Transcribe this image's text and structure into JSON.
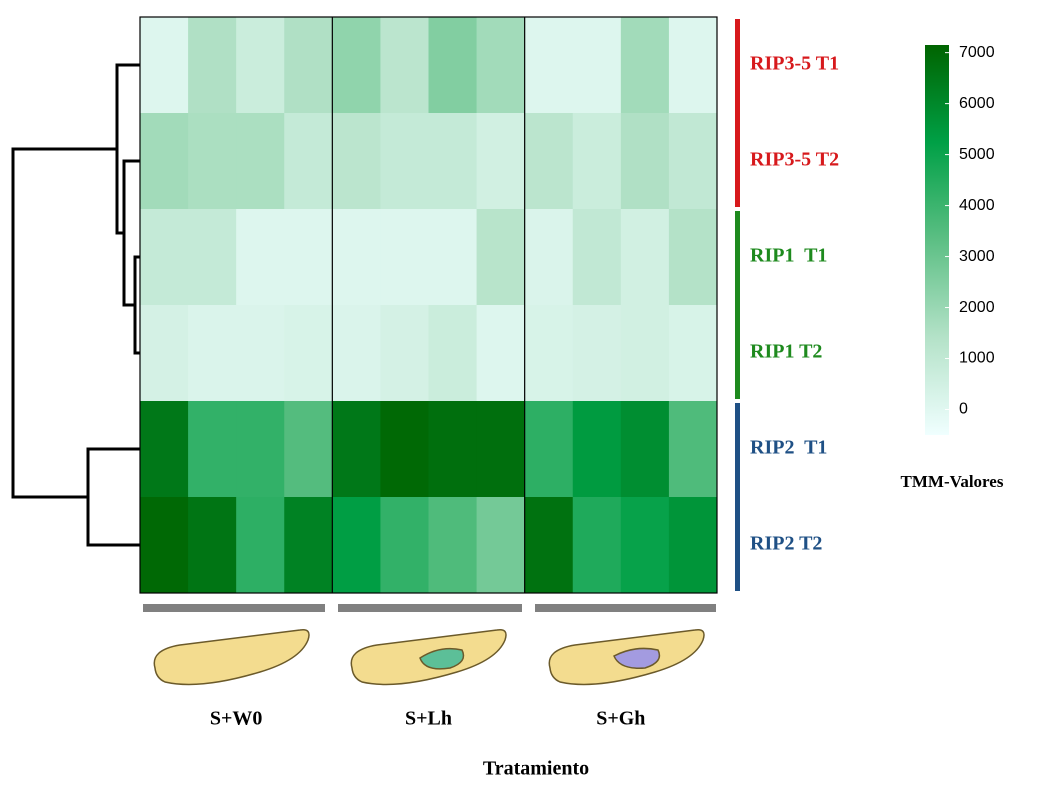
{
  "chart_data": {
    "type": "heatmap",
    "rows": [
      "RIP3-5 T1",
      "RIP3-5 T2",
      "RIP1  T1",
      "RIP1 T2",
      "RIP2  T1",
      "RIP2 T2"
    ],
    "row_colors": [
      "#d7191c",
      "#d7191c",
      "#1e8a1e",
      "#1e8a1e",
      "#1f5085",
      "#1f5085"
    ],
    "column_groups": [
      "S+W0",
      "S+Lh",
      "S+Gh"
    ],
    "values": [
      [
        100,
        1500,
        700,
        1500,
        2200,
        1200,
        2500,
        1800,
        100,
        100,
        1800,
        100
      ],
      [
        1800,
        1600,
        1600,
        900,
        1200,
        900,
        900,
        500,
        1200,
        700,
        1500,
        1000
      ],
      [
        900,
        900,
        100,
        100,
        100,
        100,
        100,
        1300,
        200,
        1000,
        500,
        1400
      ],
      [
        400,
        200,
        200,
        300,
        200,
        400,
        700,
        100,
        300,
        400,
        500,
        300
      ],
      [
        6500,
        4200,
        4200,
        3500,
        6500,
        7000,
        6800,
        6800,
        4300,
        5400,
        5800,
        3600
      ],
      [
        7000,
        6600,
        4300,
        6200,
        5300,
        4200,
        3600,
        2800,
        6700,
        4600,
        5100,
        5600
      ]
    ],
    "colormap": [
      "#f0ffff",
      "#b4e2c8",
      "#5cbf84",
      "#00a046",
      "#006400"
    ],
    "zlim": [
      -500,
      7150
    ],
    "colorbar_ticks": [
      0,
      1000,
      2000,
      3000,
      4000,
      5000,
      6000,
      7000
    ],
    "colorbar_title": "TMM-Valores",
    "xlabel": "Tratamiento"
  }
}
